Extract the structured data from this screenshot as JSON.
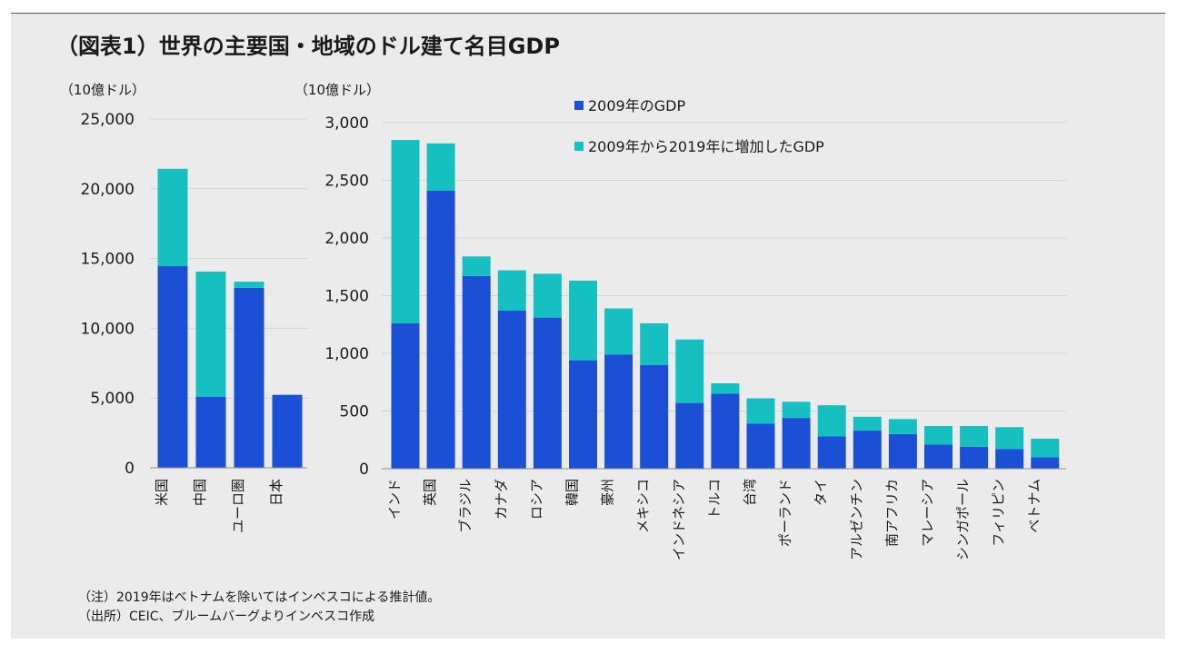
{
  "title": "（図表1）世界の主要国・地域のドル建て名目GDP",
  "notes": {
    "note": "（注）2019年はベトナムを除いてはインベスコによる推計値。",
    "source": "（出所）CEIC、ブルームバーグよりインベスコ作成"
  },
  "colors": {
    "gdp_2009": "#1a4fd6",
    "increase": "#17c0c0"
  },
  "chart_data": [
    {
      "type": "bar",
      "stacked": true,
      "title": "",
      "ylabel": "（10億ドル）",
      "ylim": [
        0,
        25000
      ],
      "yticks": [
        0,
        5000,
        10000,
        15000,
        20000,
        25000
      ],
      "ytick_labels": [
        "0",
        "5,000",
        "10,000",
        "15,000",
        "20,000",
        "25,000"
      ],
      "grid": true,
      "categories": [
        "米国",
        "中国",
        "ユーロ圏",
        "日本"
      ],
      "series": [
        {
          "name": "2009年のGDP",
          "values": [
            14450,
            5100,
            12900,
            5230
          ]
        },
        {
          "name": "2009年から2019年に増加したGDP",
          "values": [
            6980,
            8960,
            440,
            0
          ]
        }
      ]
    },
    {
      "type": "bar",
      "stacked": true,
      "title": "",
      "ylabel": "（10億ドル）",
      "ylim": [
        0,
        3000
      ],
      "yticks": [
        0,
        500,
        1000,
        1500,
        2000,
        2500,
        3000
      ],
      "ytick_labels": [
        "0",
        "500",
        "1,000",
        "1,500",
        "2,000",
        "2,500",
        "3,000"
      ],
      "grid": true,
      "legend": {
        "position": "top-center",
        "entries": [
          "2009年のGDP",
          "2009年から2019年に増加したGDP"
        ]
      },
      "categories": [
        "インド",
        "英国",
        "ブラジル",
        "カナダ",
        "ロシア",
        "韓国",
        "豪州",
        "メキシコ",
        "インドネシア",
        "トルコ",
        "台湾",
        "ポーランド",
        "タイ",
        "アルゼンチン",
        "南アフリカ",
        "マレーシア",
        "シンガポール",
        "フィリピン",
        "ベトナム"
      ],
      "series": [
        {
          "name": "2009年のGDP",
          "values": [
            1260,
            2410,
            1670,
            1370,
            1310,
            940,
            990,
            900,
            570,
            650,
            390,
            440,
            280,
            330,
            300,
            210,
            190,
            170,
            100
          ]
        },
        {
          "name": "2009年から2019年に増加したGDP",
          "values": [
            1590,
            410,
            170,
            350,
            380,
            690,
            400,
            360,
            550,
            90,
            220,
            140,
            270,
            120,
            130,
            160,
            180,
            190,
            160
          ]
        }
      ]
    }
  ]
}
